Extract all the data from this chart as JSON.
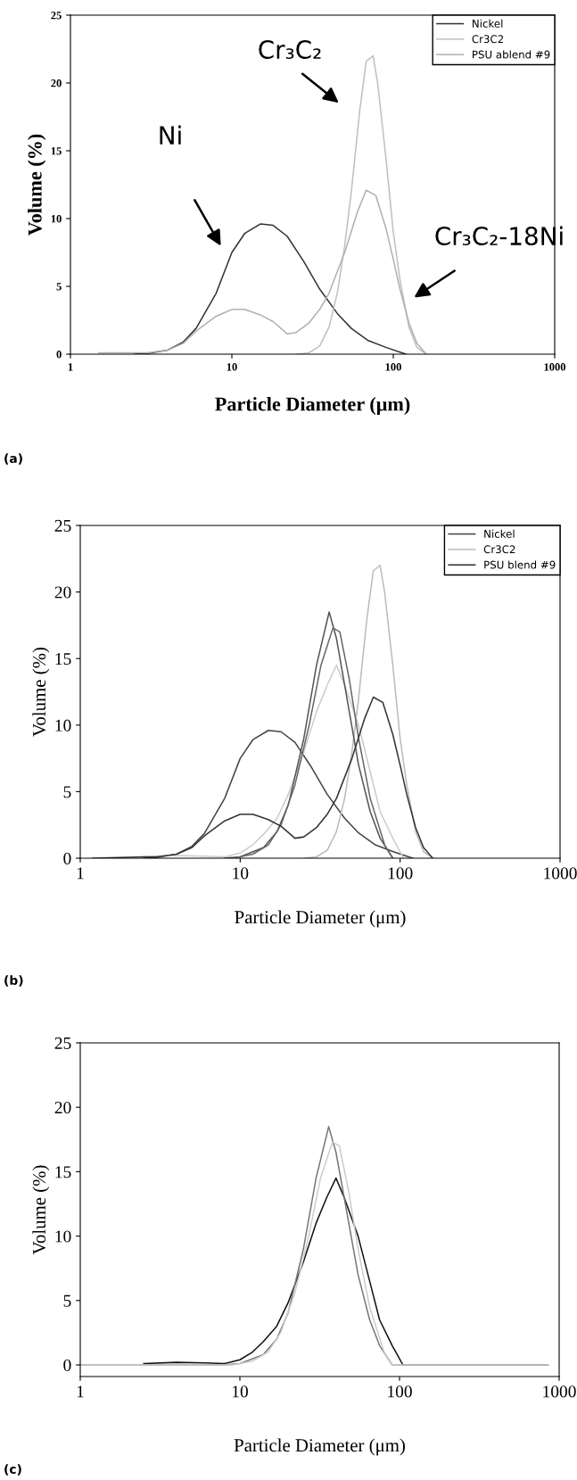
{
  "chart_data": [
    {
      "type": "line",
      "xlabel": "Particle Diameter (μm)",
      "ylabel": "Volume (%)",
      "log": "x",
      "xlim": [
        1,
        1000
      ],
      "xticks": [
        1,
        10,
        100,
        1000
      ],
      "ylim": [
        0,
        25
      ],
      "yticks": [
        0,
        5,
        10,
        15,
        20,
        25
      ],
      "grid": false,
      "legend": "top right",
      "marker": "none",
      "line_style": "solid",
      "annotations": [
        "Ni",
        "Cr₃C₂",
        "Cr₃C₂-18Ni",
        "(a)"
      ],
      "series": [
        {
          "name": "Nickel",
          "color": "#333333",
          "x": [
            2.5,
            3,
            4,
            5,
            6,
            8,
            10,
            12,
            15,
            18,
            22,
            28,
            35,
            45,
            55,
            70,
            90,
            110,
            120
          ],
          "values": [
            0,
            0.05,
            0.3,
            0.9,
            1.9,
            4.5,
            7.5,
            8.9,
            9.6,
            9.5,
            8.7,
            6.8,
            4.8,
            3.0,
            1.9,
            1.0,
            0.5,
            0.15,
            0
          ]
        },
        {
          "name": "Cr3C2",
          "color": "#c0c0c0",
          "x": [
            25,
            30,
            35,
            40,
            45,
            50,
            55,
            62,
            68,
            75,
            80,
            90,
            100,
            110,
            125,
            140,
            160
          ],
          "values": [
            0,
            0.1,
            0.6,
            2,
            4.5,
            8,
            12,
            18,
            21.6,
            22,
            20,
            14.5,
            9,
            5.5,
            2,
            0.5,
            0
          ]
        },
        {
          "name": "PSU ablend #9",
          "color": "#b0b0b0",
          "x": [
            1.5,
            2.5,
            3,
            4,
            5,
            6,
            8,
            10,
            12,
            15,
            18,
            22,
            25,
            30,
            35,
            40,
            50,
            60,
            68,
            78,
            90,
            100,
            110,
            125,
            140,
            160
          ],
          "values": [
            0.1,
            0.1,
            0.1,
            0.3,
            0.8,
            1.7,
            2.8,
            3.3,
            3.3,
            2.9,
            2.4,
            1.5,
            1.6,
            2.3,
            3.3,
            4.5,
            7.5,
            10.5,
            12.1,
            11.7,
            9.3,
            7,
            4.8,
            2.3,
            0.8,
            0
          ]
        }
      ]
    },
    {
      "type": "line",
      "xlabel": "Particle Diameter (μm)",
      "ylabel": "Volume (%)",
      "log": "x",
      "xlim": [
        1,
        1000
      ],
      "xticks": [
        1,
        10,
        100,
        1000
      ],
      "ylim": [
        0,
        25
      ],
      "yticks": [
        0,
        5,
        10,
        15,
        20,
        25
      ],
      "grid": false,
      "legend": "top right",
      "marker": "none",
      "line_style": "solid",
      "annotations": [
        "(b)"
      ],
      "series": [
        {
          "name": "Nickel",
          "color": "#444444",
          "x": [
            2.5,
            3,
            4,
            5,
            6,
            8,
            10,
            12,
            15,
            18,
            22,
            28,
            35,
            45,
            55,
            70,
            90,
            110,
            120
          ],
          "values": [
            0,
            0.05,
            0.3,
            0.9,
            1.9,
            4.5,
            7.5,
            8.9,
            9.6,
            9.5,
            8.7,
            6.8,
            4.8,
            3.0,
            1.9,
            1.0,
            0.5,
            0.15,
            0
          ]
        },
        {
          "name": "Cr3C2",
          "color": "#bbbbbb",
          "x": [
            25,
            30,
            35,
            40,
            45,
            50,
            55,
            62,
            68,
            75,
            80,
            90,
            100,
            110,
            125,
            140,
            160
          ],
          "values": [
            0,
            0.1,
            0.6,
            2,
            4.5,
            8,
            12,
            18,
            21.6,
            22,
            20,
            14.5,
            9,
            5.5,
            2,
            0.5,
            0
          ]
        },
        {
          "color": "#cccccc",
          "x": [
            2.5,
            4,
            6,
            8,
            10,
            12,
            14,
            17,
            20,
            25,
            30,
            35,
            40,
            45,
            55,
            65,
            75,
            90,
            105
          ],
          "values": [
            0.1,
            0.2,
            0.15,
            0.1,
            0.4,
            1,
            1.8,
            3,
            4.8,
            8,
            11,
            13,
            14.5,
            13,
            10,
            6.5,
            3.5,
            1.5,
            0
          ]
        },
        {
          "color": "#555555",
          "x": [
            8,
            10,
            14,
            17,
            20,
            25,
            30,
            36,
            40,
            45,
            55,
            65,
            75,
            90
          ],
          "values": [
            0,
            0.1,
            0.8,
            2,
            4,
            9,
            14.5,
            18.5,
            16.5,
            13,
            7,
            3.5,
            1.5,
            0
          ]
        },
        {
          "color": "#666666",
          "x": [
            9,
            12,
            15,
            18,
            22,
            27,
            32,
            38,
            42,
            48,
            55,
            65,
            80,
            90
          ],
          "values": [
            0,
            0.3,
            1,
            2.5,
            5.5,
            10,
            14.5,
            17.3,
            17,
            13.5,
            9,
            4.5,
            1,
            0
          ]
        },
        {
          "name": "PSU blend #9",
          "color": "#333333",
          "x": [
            1.2,
            2.5,
            3,
            4,
            5,
            6,
            8,
            10,
            12,
            15,
            18,
            22,
            25,
            30,
            35,
            40,
            50,
            60,
            68,
            78,
            90,
            100,
            110,
            125,
            140,
            160
          ],
          "values": [
            0,
            0.1,
            0.1,
            0.3,
            0.8,
            1.7,
            2.8,
            3.3,
            3.3,
            2.9,
            2.4,
            1.5,
            1.6,
            2.3,
            3.3,
            4.5,
            7.5,
            10.5,
            12.1,
            11.7,
            9.3,
            7,
            4.8,
            2.3,
            0.8,
            0
          ]
        }
      ]
    },
    {
      "type": "line",
      "xlabel": "Particle Diameter (μm)",
      "ylabel": "Volume (%)",
      "log": "x",
      "xlim": [
        1,
        1000
      ],
      "xticks": [
        1,
        10,
        100,
        1000
      ],
      "ylim": [
        -0.9,
        25
      ],
      "yticks": [
        0,
        5,
        10,
        15,
        20,
        25
      ],
      "grid": false,
      "marker": "none",
      "line_style": "solid",
      "annotations": [
        "(c)"
      ],
      "series": [
        {
          "color": "#111111",
          "x": [
            2.5,
            4,
            6,
            8,
            10,
            12,
            14,
            17,
            20,
            25,
            30,
            35,
            40,
            45,
            55,
            65,
            75,
            90,
            105,
            850
          ],
          "values": [
            0.1,
            0.2,
            0.15,
            0.1,
            0.4,
            1,
            1.8,
            3,
            4.8,
            8,
            11,
            13,
            14.5,
            13,
            10,
            6.5,
            3.5,
            1.5,
            0,
            0
          ]
        },
        {
          "color": "#777777",
          "x": [
            1,
            8,
            10,
            14,
            17,
            20,
            25,
            30,
            36,
            40,
            45,
            55,
            65,
            75,
            90,
            850
          ],
          "values": [
            0,
            0,
            0.1,
            0.8,
            2,
            4,
            9,
            14.5,
            18.5,
            16.5,
            13,
            7,
            3.5,
            1.5,
            0,
            0
          ]
        },
        {
          "color": "#cccccc",
          "x": [
            1,
            9,
            12,
            15,
            18,
            22,
            27,
            32,
            38,
            42,
            48,
            55,
            65,
            80,
            90,
            850
          ],
          "values": [
            0,
            0,
            0.3,
            1,
            2.5,
            5.5,
            10,
            14.5,
            17.3,
            17,
            13.5,
            9,
            4.5,
            1,
            0,
            0
          ]
        }
      ]
    }
  ]
}
